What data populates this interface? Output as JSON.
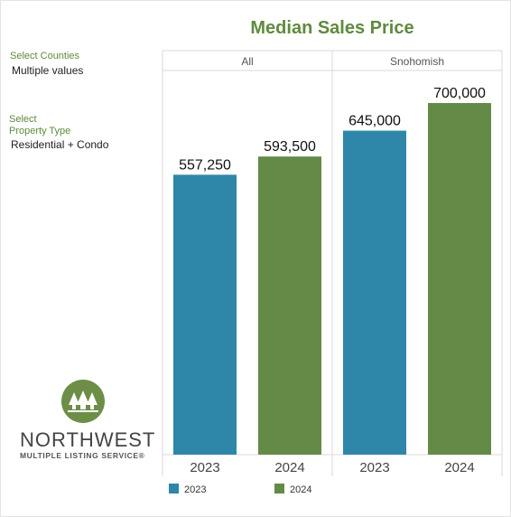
{
  "title": "Median Sales Price",
  "filters": [
    {
      "label_lines": [
        "Select Counties"
      ],
      "value": "Multiple values"
    },
    {
      "label_lines": [
        "Select",
        "Property Type"
      ],
      "value": "Residential + Condo"
    }
  ],
  "logo": {
    "name": "NORTHWEST",
    "subtitle": "MULTIPLE LISTING SERVICE®"
  },
  "colors": {
    "2023": "#2e87a8",
    "2024": "#648a47",
    "accent": "#5f8a3e"
  },
  "chart_data": {
    "type": "bar",
    "title": "Median Sales Price",
    "panels": [
      {
        "name": "All",
        "categories": [
          "2023",
          "2024"
        ],
        "values": [
          557250,
          593500
        ],
        "labels": [
          "557,250",
          "593,500"
        ]
      },
      {
        "name": "Snohomish",
        "categories": [
          "2023",
          "2024"
        ],
        "values": [
          645000,
          700000
        ],
        "labels": [
          "645,000",
          "700,000"
        ]
      }
    ],
    "legend": [
      "2023",
      "2024"
    ],
    "legend_position": "bottom",
    "ylim": [
      0,
      700000
    ],
    "grid": false
  }
}
